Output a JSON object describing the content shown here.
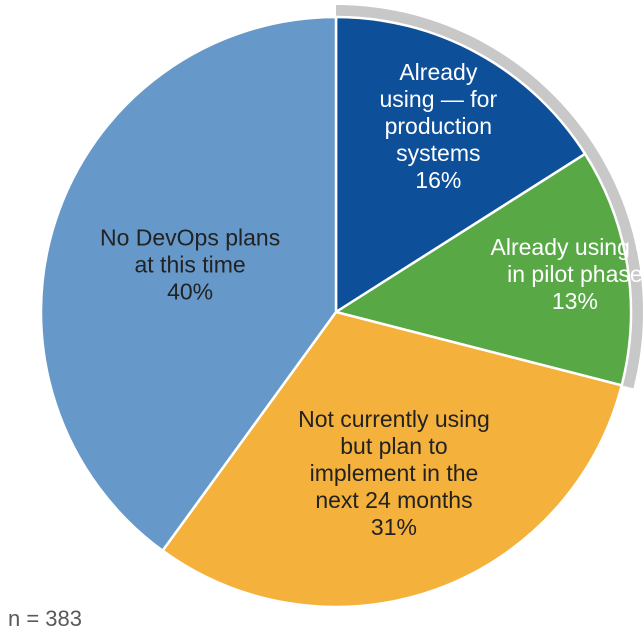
{
  "chart_data": {
    "type": "pie",
    "slices": [
      {
        "label": [
          "Already",
          "using — for",
          "production",
          "systems"
        ],
        "value": 16,
        "value_label": "16%",
        "color": "#0e4f9a",
        "text_color": "#ffffff"
      },
      {
        "label": [
          "Already using —",
          "in pilot phase"
        ],
        "value": 13,
        "value_label": "13%",
        "color": "#58a845",
        "text_color": "#ffffff"
      },
      {
        "label": [
          "Not currently using",
          "but plan to",
          "implement in the",
          "next 24 months"
        ],
        "value": 31,
        "value_label": "31%",
        "color": "#f4b13b",
        "text_color": "#222222"
      },
      {
        "label": [
          "No DevOps plans",
          "at this time"
        ],
        "value": 40,
        "value_label": "40%",
        "color": "#6699c9",
        "text_color": "#222222"
      }
    ],
    "start_angle_deg": 0,
    "direction": "clockwise",
    "highlight_arc_color": "#c8c8c8",
    "highlighted_slices": [
      0,
      1
    ]
  },
  "footnote": "n = 383"
}
